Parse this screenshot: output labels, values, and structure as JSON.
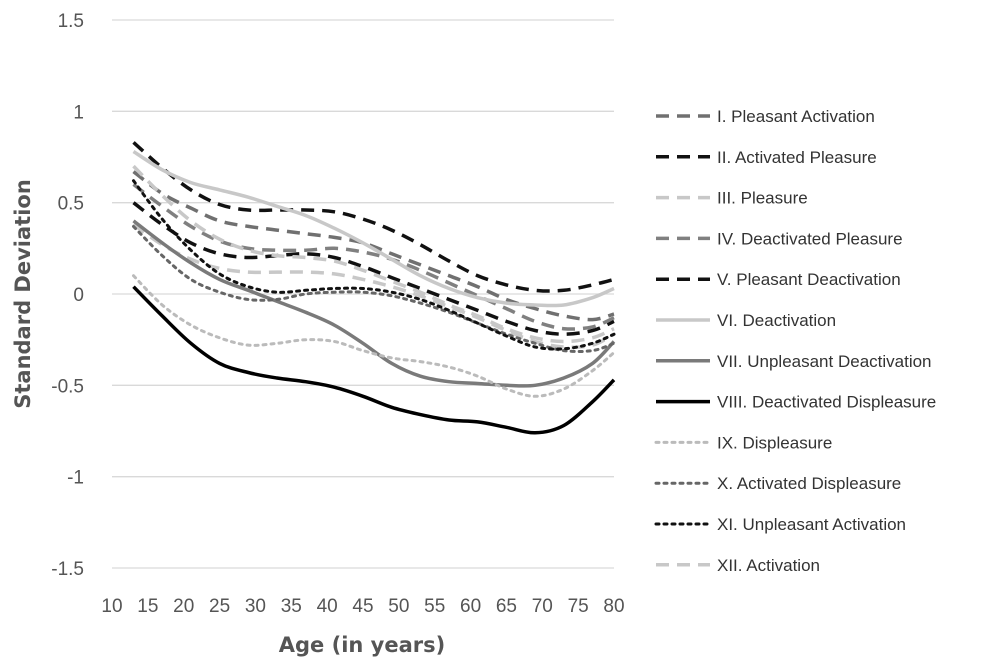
{
  "chart_data": {
    "type": "line",
    "xlabel": "Age (in years)",
    "ylabel": "Standard Deviation",
    "xlim": [
      10,
      80
    ],
    "ylim": [
      -1.5,
      1.5
    ],
    "x_ticks": [
      10,
      15,
      20,
      25,
      30,
      35,
      40,
      45,
      50,
      55,
      60,
      65,
      70,
      75,
      80
    ],
    "y_ticks": [
      "1.5",
      "1",
      "0.5",
      "0",
      "-0.5",
      "-1",
      "-1.5"
    ],
    "grid": true,
    "legend_position": "right",
    "x": [
      13,
      17,
      21,
      25,
      29,
      33,
      37,
      41,
      45,
      49,
      53,
      57,
      61,
      65,
      69,
      73,
      77,
      80
    ],
    "series": [
      {
        "name": "I. Pleasant Activation",
        "style": "dash",
        "color": "#707070",
        "values": [
          0.67,
          0.55,
          0.47,
          0.4,
          0.37,
          0.35,
          0.33,
          0.31,
          0.28,
          0.22,
          0.16,
          0.1,
          0.04,
          -0.03,
          -0.08,
          -0.12,
          -0.14,
          -0.11
        ]
      },
      {
        "name": "II. Activated Pleasure",
        "style": "dash",
        "color": "#111111",
        "values": [
          0.5,
          0.38,
          0.28,
          0.22,
          0.2,
          0.21,
          0.22,
          0.2,
          0.15,
          0.09,
          0.03,
          -0.03,
          -0.09,
          -0.15,
          -0.2,
          -0.22,
          -0.2,
          -0.15
        ]
      },
      {
        "name": "III. Pleasure",
        "style": "dash",
        "color": "#c8c8c8",
        "values": [
          0.38,
          0.27,
          0.19,
          0.14,
          0.12,
          0.12,
          0.12,
          0.11,
          0.08,
          0.04,
          -0.01,
          -0.07,
          -0.13,
          -0.2,
          -0.26,
          -0.29,
          -0.28,
          -0.22
        ]
      },
      {
        "name": "IV. Deactivated Pleasure",
        "style": "dash",
        "color": "#808080",
        "values": [
          0.6,
          0.48,
          0.37,
          0.29,
          0.25,
          0.24,
          0.24,
          0.25,
          0.23,
          0.19,
          0.13,
          0.06,
          -0.01,
          -0.08,
          -0.15,
          -0.19,
          -0.18,
          -0.13
        ]
      },
      {
        "name": "V. Pleasant Deactivation",
        "style": "dash",
        "color": "#111111",
        "values": [
          0.83,
          0.69,
          0.57,
          0.49,
          0.46,
          0.46,
          0.46,
          0.45,
          0.41,
          0.35,
          0.27,
          0.18,
          0.1,
          0.05,
          0.02,
          0.02,
          0.05,
          0.08
        ]
      },
      {
        "name": "VI. Deactivation",
        "style": "solid",
        "color": "#c8c8c8",
        "values": [
          0.78,
          0.68,
          0.61,
          0.57,
          0.53,
          0.48,
          0.43,
          0.36,
          0.28,
          0.19,
          0.1,
          0.03,
          -0.02,
          -0.05,
          -0.06,
          -0.06,
          -0.02,
          0.03
        ]
      },
      {
        "name": "VII. Unpleasant Deactivation",
        "style": "solid",
        "color": "#7a7a7a",
        "values": [
          0.4,
          0.28,
          0.17,
          0.08,
          0.02,
          -0.04,
          -0.1,
          -0.17,
          -0.27,
          -0.38,
          -0.45,
          -0.48,
          -0.49,
          -0.5,
          -0.5,
          -0.46,
          -0.38,
          -0.26
        ]
      },
      {
        "name": "VIII. Deactivated Displeasure",
        "style": "solid",
        "color": "#000000",
        "values": [
          0.04,
          -0.12,
          -0.27,
          -0.38,
          -0.43,
          -0.46,
          -0.48,
          -0.51,
          -0.56,
          -0.62,
          -0.66,
          -0.69,
          -0.7,
          -0.73,
          -0.76,
          -0.72,
          -0.59,
          -0.47
        ]
      },
      {
        "name": "IX. Displeasure",
        "style": "dot",
        "color": "#bbbbbb",
        "values": [
          0.1,
          -0.06,
          -0.17,
          -0.24,
          -0.28,
          -0.27,
          -0.25,
          -0.26,
          -0.31,
          -0.35,
          -0.37,
          -0.4,
          -0.45,
          -0.52,
          -0.56,
          -0.52,
          -0.42,
          -0.32
        ]
      },
      {
        "name": "X. Activated Displeasure",
        "style": "dot",
        "color": "#666666",
        "values": [
          0.37,
          0.21,
          0.08,
          0.01,
          -0.03,
          -0.03,
          0.0,
          0.01,
          0.01,
          -0.01,
          -0.05,
          -0.1,
          -0.16,
          -0.22,
          -0.27,
          -0.31,
          -0.31,
          -0.27
        ]
      },
      {
        "name": "XI. Unpleasant Activation",
        "style": "dot",
        "color": "#111111",
        "values": [
          0.62,
          0.41,
          0.24,
          0.11,
          0.04,
          0.01,
          0.02,
          0.03,
          0.03,
          0.01,
          -0.03,
          -0.09,
          -0.16,
          -0.23,
          -0.29,
          -0.3,
          -0.27,
          -0.22
        ]
      },
      {
        "name": "XII. Activation",
        "style": "dash",
        "color": "#c8c8c8",
        "values": [
          0.7,
          0.54,
          0.4,
          0.3,
          0.24,
          0.21,
          0.2,
          0.18,
          0.13,
          0.07,
          0.01,
          -0.06,
          -0.12,
          -0.19,
          -0.24,
          -0.26,
          -0.24,
          -0.19
        ]
      }
    ]
  }
}
